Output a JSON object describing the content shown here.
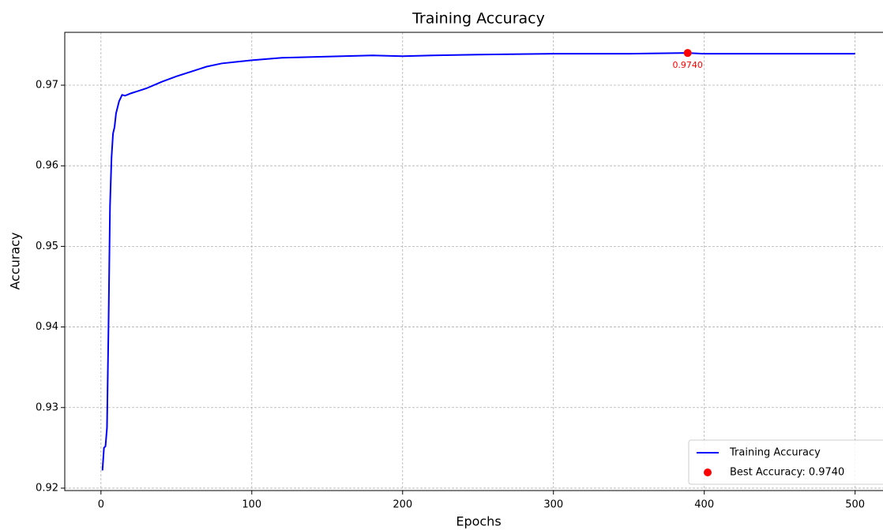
{
  "chart_data": {
    "type": "line",
    "title": "Training Accuracy",
    "xlabel": "Epochs",
    "ylabel": "Accuracy",
    "xlim": [
      -24,
      518.5
    ],
    "ylim": [
      0.9197,
      0.97656
    ],
    "xticks": [
      0,
      100,
      200,
      300,
      400,
      500
    ],
    "yticks": [
      0.92,
      0.93,
      0.94,
      0.95,
      0.96,
      0.97
    ],
    "grid": true,
    "legend": "lower right",
    "series": [
      {
        "name": "Training Accuracy",
        "color": "#0000ff",
        "x": [
          1,
          2,
          3,
          4,
          5,
          6,
          7,
          8,
          9,
          10,
          12,
          14,
          16,
          20,
          25,
          30,
          40,
          50,
          60,
          70,
          80,
          90,
          100,
          120,
          140,
          160,
          180,
          200,
          220,
          250,
          300,
          350,
          389,
          400,
          450,
          500
        ],
        "values": [
          0.9222,
          0.925,
          0.9252,
          0.9275,
          0.94,
          0.955,
          0.961,
          0.964,
          0.9648,
          0.9665,
          0.968,
          0.9688,
          0.9687,
          0.969,
          0.9693,
          0.9696,
          0.9704,
          0.9711,
          0.9717,
          0.9723,
          0.9727,
          0.9729,
          0.9731,
          0.9734,
          0.9735,
          0.9736,
          0.9737,
          0.9736,
          0.9737,
          0.9738,
          0.9739,
          0.9739,
          0.974,
          0.9739,
          0.9739,
          0.9739
        ]
      },
      {
        "name": "Best Accuracy: 0.9740",
        "color": "#ff0000",
        "type": "scatter",
        "x": [
          389
        ],
        "values": [
          0.974
        ],
        "value_labels": [
          "0.9740"
        ]
      }
    ]
  }
}
